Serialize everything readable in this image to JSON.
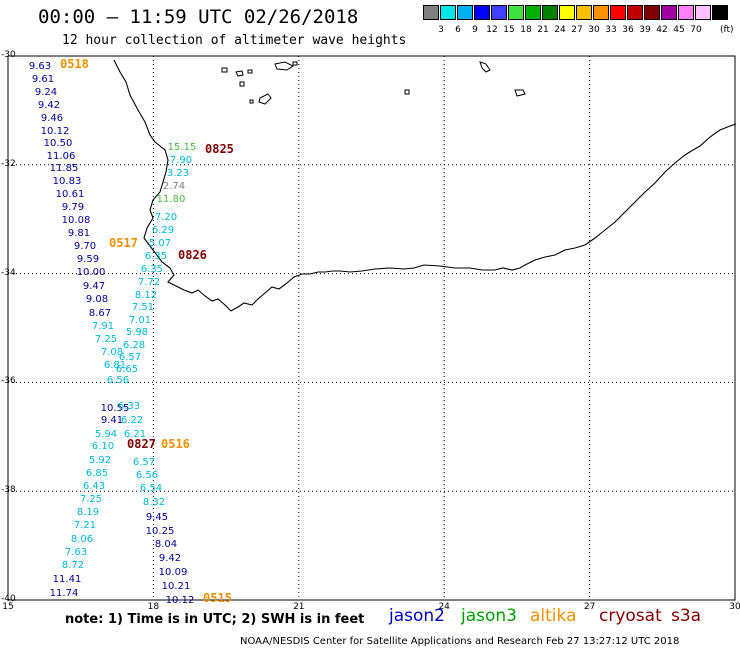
{
  "header": {
    "title": "00:00 – 11:59 UTC 02/26/2018",
    "subtitle": "12 hour collection of altimeter wave heights"
  },
  "color_scale": {
    "colors": [
      "#808080",
      "#00e5e5",
      "#00b0f0",
      "#0000ff",
      "#4040ff",
      "#40e040",
      "#00b000",
      "#008000",
      "#ffff00",
      "#ffc000",
      "#ff9000",
      "#ff0000",
      "#c00000",
      "#800000",
      "#a000a0",
      "#ff80ff",
      "#ffc0ff",
      "#000000"
    ],
    "labels": [
      "3",
      "6",
      "9",
      "12",
      "15",
      "18",
      "21",
      "24",
      "27",
      "30",
      "33",
      "36",
      "39",
      "42",
      "45",
      "70"
    ],
    "unit": "(ft)"
  },
  "axes": {
    "lon_labels": [
      "15",
      "18",
      "21",
      "24",
      "27",
      "30"
    ],
    "lat_labels": [
      "-30",
      "-32",
      "-34",
      "-36",
      "-38",
      "-40"
    ]
  },
  "observations": {
    "colors": {
      "jason2": "#0000c0",
      "jason3": "#00a000",
      "altika": "#f09000",
      "cryosat": "#800000",
      "s3a": "#800000",
      "swh_blue": "#000090",
      "swh_cyan": "#00b8d8",
      "swh_gray": "#808080",
      "swh_green": "#40c040"
    },
    "track_a": [
      "9.63",
      "9.61",
      "9.24",
      "9.42",
      "9.46",
      "10.12",
      "10.50",
      "11.06",
      "11.85",
      "10.83",
      "10.61",
      "9.79",
      "10.08",
      "9.81",
      "9.70",
      "9.59",
      "10.00",
      "9.47",
      "9.08",
      "8.67",
      "7.91",
      "7.25",
      "7.08",
      "6.81",
      "6.56",
      "10.55",
      "9.41",
      "5.94",
      "6.10",
      "5.92",
      "6.85",
      "6.43",
      "7.25",
      "8.19",
      "7.21",
      "8.06",
      "7.63",
      "8.72",
      "11.41",
      "11.74"
    ],
    "track_b": [
      "15.15",
      "7.90",
      "3.23",
      "2.74",
      "11.80",
      "7.20",
      "6.29",
      "5.07",
      "6.35",
      "6.35",
      "7.72",
      "8.12",
      "7.51",
      "7.01",
      "5.98",
      "6.28",
      "6.57",
      "6.65",
      "6.33",
      "6.22",
      "6.21",
      "6.57",
      "6.56",
      "6.54",
      "8.32",
      "9.45",
      "10.25",
      "8.04",
      "9.42",
      "10.09",
      "10.21",
      "10.12"
    ],
    "times": [
      "0518",
      "0825",
      "0517",
      "0826",
      "0827",
      "0516",
      "0515"
    ]
  },
  "footer": {
    "note": "note:  1) Time is in UTC;  2) SWH is in feet",
    "satellites": [
      "jason2",
      "jason3",
      "altika",
      "cryosat",
      "s3a"
    ],
    "credit": "NOAA/NESDIS Center for Satellite Applications and Research     Feb 27 13:27:12 UTC 2018"
  }
}
